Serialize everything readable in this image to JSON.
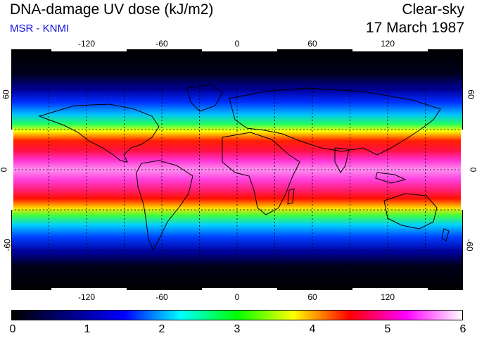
{
  "header": {
    "title": "DNA-damage UV dose (kJ/m2)",
    "source": "MSR - KNMI",
    "condition": "Clear-sky",
    "date": "17 March 1987"
  },
  "map": {
    "projection": "equirectangular",
    "lon_ticks": [
      "-120",
      "-60",
      "0",
      "60",
      "120"
    ],
    "lat_ticks": [
      "60",
      "0",
      "-60"
    ],
    "grid_style": "dotted"
  },
  "colorbar": {
    "min": 0,
    "max": 6,
    "labels": [
      "0",
      "1",
      "2",
      "3",
      "4",
      "5",
      "6"
    ],
    "colors": [
      "#000000",
      "#000080",
      "#0000ff",
      "#00ffff",
      "#00ff00",
      "#ffff00",
      "#ff0000",
      "#ff00ff",
      "#ffffff"
    ]
  },
  "chart_data": {
    "type": "heatmap",
    "title": "DNA-damage UV dose (kJ/m2)",
    "units": "kJ/m2",
    "lon_range": [
      -180,
      180
    ],
    "lat_range": [
      -90,
      90
    ],
    "zonal_profile": {
      "lat": [
        90,
        75,
        60,
        50,
        40,
        30,
        20,
        10,
        0,
        -10,
        -20,
        -30,
        -40,
        -50,
        -60,
        -75,
        -90
      ],
      "dose": [
        0.0,
        0.2,
        0.9,
        1.5,
        2.5,
        3.8,
        4.8,
        5.3,
        5.5,
        5.6,
        5.3,
        4.4,
        3.0,
        1.8,
        0.9,
        0.2,
        0.0
      ]
    }
  }
}
